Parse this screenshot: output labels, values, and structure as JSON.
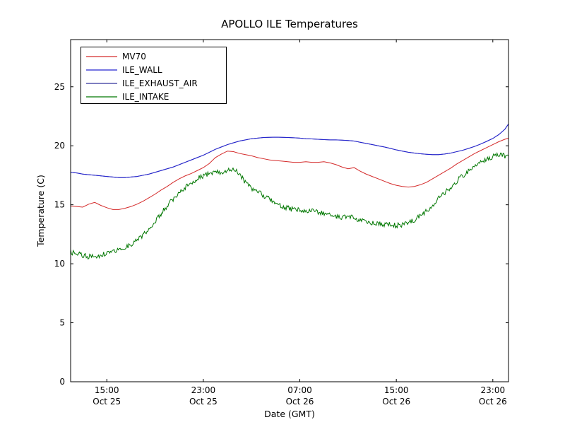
{
  "chart_data": {
    "type": "line",
    "title": "APOLLO ILE Temperatures",
    "xlabel": "Date (GMT)",
    "ylabel": "Temperature (C)",
    "x_range": [
      0,
      36.3
    ],
    "y_range": [
      0,
      29
    ],
    "y_ticks": [
      0,
      5,
      10,
      15,
      20,
      25
    ],
    "x_ticks": [
      {
        "pos": 3,
        "time": "15:00",
        "date": "Oct 25"
      },
      {
        "pos": 11,
        "time": "23:00",
        "date": "Oct 25"
      },
      {
        "pos": 19,
        "time": "07:00",
        "date": "Oct 26"
      },
      {
        "pos": 27,
        "time": "15:00",
        "date": "Oct 26"
      },
      {
        "pos": 35,
        "time": "23:00",
        "date": "Oct 26"
      }
    ],
    "legend_position": "upper-left",
    "x_hours": [
      0,
      0.5,
      1,
      1.5,
      2,
      2.5,
      3,
      3.5,
      4,
      4.5,
      5,
      5.5,
      6,
      6.5,
      7,
      7.5,
      8,
      8.5,
      9,
      9.5,
      10,
      10.5,
      11,
      11.5,
      12,
      12.5,
      13,
      13.5,
      14,
      14.5,
      15,
      15.5,
      16,
      16.5,
      17,
      17.5,
      18,
      18.5,
      19,
      19.5,
      20,
      20.5,
      21,
      21.5,
      22,
      22.5,
      23,
      23.5,
      24,
      24.5,
      25,
      25.5,
      26,
      26.5,
      27,
      27.5,
      28,
      28.5,
      29,
      29.5,
      30,
      30.5,
      31,
      31.5,
      32,
      32.5,
      33,
      33.5,
      34,
      34.5,
      35,
      35.5,
      36,
      36.3
    ],
    "series": [
      {
        "name": "MV70",
        "color": "#d42a2a",
        "y": [
          14.9,
          14.85,
          14.8,
          15.05,
          15.2,
          14.95,
          14.75,
          14.6,
          14.6,
          14.7,
          14.85,
          15.05,
          15.3,
          15.6,
          15.9,
          16.25,
          16.55,
          16.9,
          17.2,
          17.45,
          17.65,
          17.9,
          18.15,
          18.5,
          19.0,
          19.3,
          19.55,
          19.5,
          19.35,
          19.25,
          19.15,
          19.0,
          18.9,
          18.8,
          18.75,
          18.7,
          18.65,
          18.6,
          18.6,
          18.65,
          18.6,
          18.6,
          18.65,
          18.55,
          18.4,
          18.2,
          18.05,
          18.15,
          17.85,
          17.6,
          17.4,
          17.2,
          17.0,
          16.8,
          16.65,
          16.55,
          16.5,
          16.55,
          16.7,
          16.9,
          17.2,
          17.5,
          17.8,
          18.1,
          18.45,
          18.75,
          19.05,
          19.35,
          19.6,
          19.85,
          20.1,
          20.35,
          20.55,
          20.65
        ]
      },
      {
        "name": "ILE_WALL",
        "color": "#2424d0",
        "y": [
          17.75,
          17.7,
          17.6,
          17.55,
          17.5,
          17.45,
          17.4,
          17.35,
          17.3,
          17.3,
          17.35,
          17.4,
          17.5,
          17.6,
          17.75,
          17.9,
          18.05,
          18.2,
          18.4,
          18.6,
          18.8,
          19.0,
          19.2,
          19.45,
          19.7,
          19.9,
          20.1,
          20.25,
          20.4,
          20.5,
          20.6,
          20.65,
          20.7,
          20.72,
          20.73,
          20.72,
          20.7,
          20.68,
          20.65,
          20.6,
          20.58,
          20.55,
          20.52,
          20.5,
          20.5,
          20.48,
          20.45,
          20.4,
          20.3,
          20.2,
          20.1,
          20.0,
          19.9,
          19.78,
          19.65,
          19.55,
          19.45,
          19.38,
          19.32,
          19.28,
          19.25,
          19.25,
          19.3,
          19.38,
          19.5,
          19.62,
          19.78,
          19.95,
          20.15,
          20.38,
          20.62,
          20.95,
          21.4,
          21.85
        ]
      },
      {
        "name": "ILE_EXHAUST_AIR",
        "color": "#30309a",
        "y_ref": "ILE_WALL"
      },
      {
        "name": "ILE_INTAKE",
        "color": "#007700",
        "noise_amplitude": 0.22,
        "y": [
          11.0,
          10.85,
          10.7,
          10.6,
          10.65,
          10.75,
          10.9,
          11.05,
          11.2,
          11.4,
          11.65,
          12.0,
          12.45,
          13.0,
          13.6,
          14.25,
          14.9,
          15.5,
          16.05,
          16.5,
          16.9,
          17.2,
          17.45,
          17.65,
          17.8,
          17.7,
          17.9,
          18.15,
          17.6,
          16.9,
          16.4,
          16.1,
          15.8,
          15.45,
          15.1,
          14.85,
          14.7,
          14.6,
          14.55,
          14.5,
          14.45,
          14.4,
          14.3,
          14.15,
          14.0,
          13.95,
          14.0,
          13.9,
          13.7,
          13.55,
          13.45,
          13.4,
          13.35,
          13.3,
          13.25,
          13.3,
          13.45,
          13.7,
          14.05,
          14.5,
          15.0,
          15.5,
          16.0,
          16.5,
          17.0,
          17.45,
          17.9,
          18.3,
          18.65,
          18.9,
          19.1,
          19.25,
          19.15,
          19.0
        ]
      }
    ]
  }
}
